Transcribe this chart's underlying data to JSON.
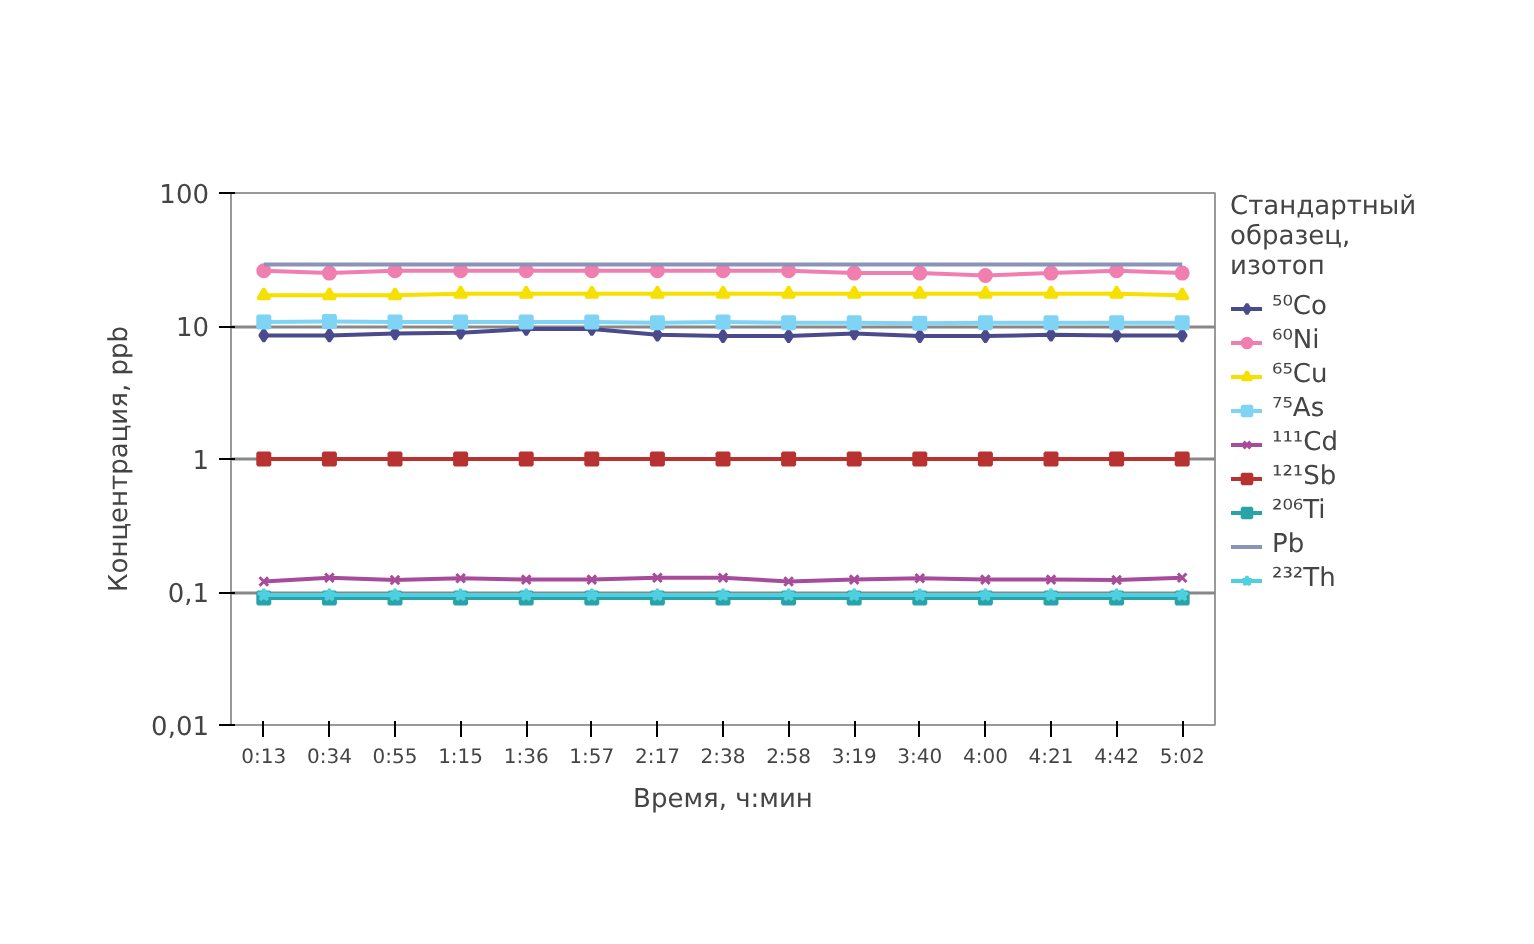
{
  "chart_data": {
    "type": "line",
    "xlabel": "Время, ч:мин",
    "ylabel": "Концентрация, ppb",
    "legend_title": "Стандартный образец, изотоп",
    "log": true,
    "grid": "y",
    "legend": "right",
    "categories": [
      "0:13",
      "0:34",
      "0:55",
      "1:15",
      "1:36",
      "1:57",
      "2:17",
      "2:38",
      "2:58",
      "3:19",
      "3:40",
      "4:00",
      "4:21",
      "4:42",
      "5:02"
    ],
    "ylim": [
      0.01,
      100
    ],
    "yticks": [
      {
        "value": 0.01,
        "label": "0,01"
      },
      {
        "value": 0.1,
        "label": "0,1"
      },
      1,
      10,
      100
    ],
    "series": [
      {
        "name": "⁵⁰Co",
        "color": "#4b4a8c",
        "marker": "diamond",
        "values": [
          8.5,
          8.5,
          8.8,
          8.9,
          9.5,
          9.5,
          8.6,
          8.4,
          8.4,
          8.8,
          8.4,
          8.4,
          8.6,
          8.5,
          8.5
        ]
      },
      {
        "name": "⁶⁰Ni",
        "color": "#f07fb0",
        "marker": "circle",
        "values": [
          26,
          25,
          26,
          26,
          26,
          26,
          26,
          26,
          26,
          25,
          25,
          24,
          25,
          26,
          25
        ]
      },
      {
        "name": "⁶⁵Cu",
        "color": "#f5e000",
        "marker": "triangle",
        "values": [
          17,
          17,
          17,
          17.5,
          17.5,
          17.5,
          17.5,
          17.5,
          17.5,
          17.5,
          17.5,
          17.5,
          17.5,
          17.5,
          17
        ]
      },
      {
        "name": "⁷⁵As",
        "color": "#7fd3f5",
        "marker": "square",
        "values": [
          10.7,
          10.8,
          10.7,
          10.7,
          10.7,
          10.7,
          10.6,
          10.7,
          10.6,
          10.6,
          10.5,
          10.6,
          10.6,
          10.6,
          10.6
        ]
      },
      {
        "name": "¹¹¹Cd",
        "color": "#a64c9a",
        "marker": "cross",
        "values": [
          0.12,
          0.128,
          0.123,
          0.127,
          0.124,
          0.124,
          0.128,
          0.128,
          0.12,
          0.124,
          0.127,
          0.124,
          0.124,
          0.123,
          0.128
        ]
      },
      {
        "name": "¹²¹Sb",
        "color": "#b83232",
        "marker": "square",
        "values": [
          1,
          1,
          1,
          1,
          1,
          1,
          1,
          1,
          1,
          1,
          1,
          1,
          1,
          1,
          1
        ]
      },
      {
        "name": "²⁰⁶Ti",
        "color": "#2aa3a8",
        "marker": "square",
        "values": [
          0.09,
          0.09,
          0.09,
          0.09,
          0.09,
          0.09,
          0.09,
          0.09,
          0.09,
          0.09,
          0.09,
          0.09,
          0.09,
          0.09,
          0.09
        ]
      },
      {
        "name": "Pb",
        "color": "#8a93b8",
        "marker": "none",
        "values": [
          29,
          29,
          29,
          29,
          29,
          29,
          29,
          29,
          29,
          29,
          29,
          29,
          29,
          29,
          29
        ]
      },
      {
        "name": "²³²Th",
        "color": "#4fd0e0",
        "marker": "star",
        "values": [
          0.095,
          0.095,
          0.095,
          0.095,
          0.095,
          0.095,
          0.095,
          0.095,
          0.095,
          0.095,
          0.095,
          0.095,
          0.095,
          0.095,
          0.095
        ]
      }
    ]
  }
}
